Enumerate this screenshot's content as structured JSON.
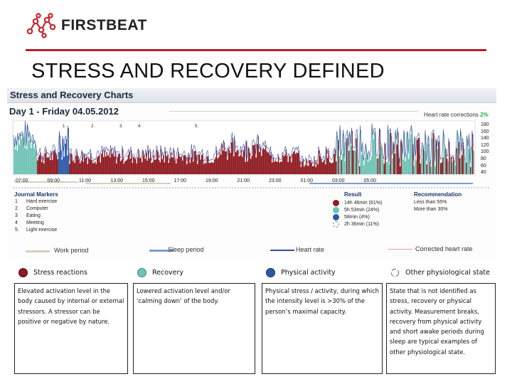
{
  "header": {
    "brand": "FIRSTBEAT",
    "title": "STRESS AND RECOVERY DEFINED"
  },
  "chart": {
    "panel_title": "Stress and Recovery Charts",
    "day_label": "Day 1 - Friday 04.05.2012",
    "hr_corrections_label": "Heart rate corrections",
    "hr_corrections_value": "2%",
    "y_ticks": [
      "180",
      "160",
      "140",
      "120",
      "100",
      "80",
      "60",
      "40"
    ],
    "x_ticks": [
      "07:00",
      "09:00",
      "11:00",
      "13:00",
      "15:00",
      "17:00",
      "19:00",
      "21:00",
      "23:00",
      "01:00",
      "03:00",
      "05:00"
    ],
    "marker_numbers": [
      "1.",
      "2.",
      "3.",
      "4.",
      "5."
    ],
    "journal_markers": {
      "title": "Journal Markers",
      "items": [
        {
          "num": "1",
          "label": "Hard exercise"
        },
        {
          "num": "2",
          "label": "Computer"
        },
        {
          "num": "3",
          "label": "Eating"
        },
        {
          "num": "4",
          "label": "Meeting"
        },
        {
          "num": "5.",
          "label": "Light exercise"
        }
      ]
    },
    "result": {
      "title": "Result",
      "items": [
        {
          "value": "14h 46min (61%)",
          "color": "#8e1a20"
        },
        {
          "value": "5h 53min (24%)",
          "color": "#6ec2b5"
        },
        {
          "value": "58min (4%)",
          "color": "#2a5aa6"
        },
        {
          "value": "2h 36min (11%)",
          "color": "#ffffff"
        }
      ]
    },
    "recommendation": {
      "title": "Recommendation",
      "items": [
        "Less than 55%",
        "More than 30%"
      ]
    },
    "legend": {
      "work": "Work period",
      "sleep": "Sleep period",
      "hr": "Heart rate",
      "corrected": "Corrected heart rate"
    },
    "colors": {
      "stress": "#8e1a20",
      "recovery": "#6ec2b5",
      "activity": "#2a5aa6",
      "work": "#d8d0bc",
      "sleep": "#7c9cd0",
      "hr": "#3a4a9a",
      "corrected": "#e0a0a8"
    }
  },
  "categories": [
    {
      "name": "Stress reactions",
      "description": "Elevated activation level in the body caused by internal or external stressors. A stressor can be positive or negative by nature."
    },
    {
      "name": "Recovery",
      "description": "Lowered activation level and/or ‘calming down’ of the body."
    },
    {
      "name": "Physical activity",
      "description": "Physical stress / activity, during which the intensity level is >30% of the person’s maximal capacity."
    },
    {
      "name": "Other physiological state",
      "description": "State that is not identified as stress, recovery or physical activity. Measurement breaks, recovery from physical activity and short awake periods during sleep are typical examples of other physiological state."
    }
  ]
}
